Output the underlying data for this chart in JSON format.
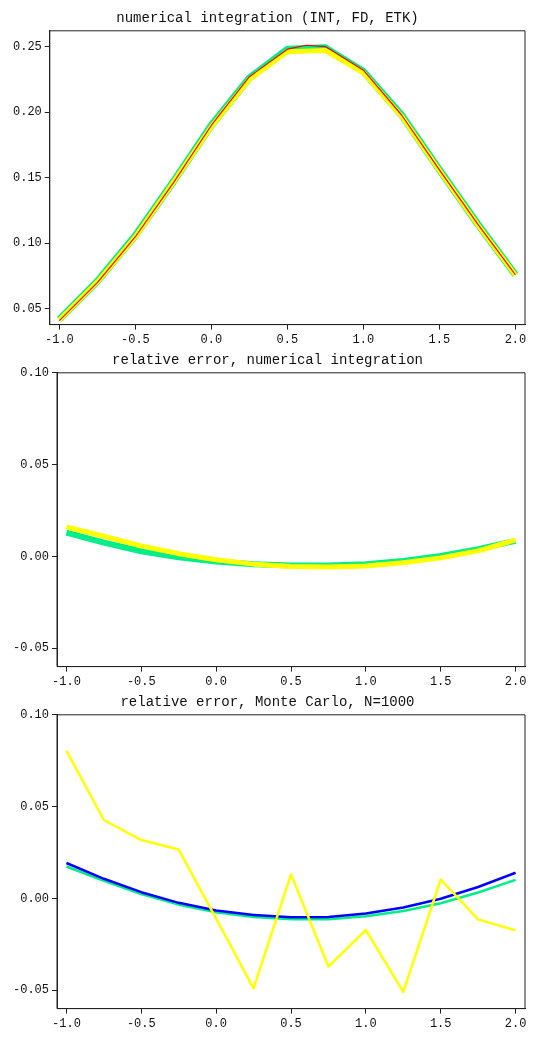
{
  "chart_data": [
    {
      "type": "line",
      "title": "numerical integration (INT, FD, ETK)",
      "x": [
        -1,
        -0.75,
        -0.5,
        -0.25,
        0,
        0.25,
        0.5,
        0.75,
        1,
        1.25,
        1.5,
        1.75,
        2
      ],
      "xlim": [
        -1.063,
        2.063
      ],
      "xticks": [
        {
          "value": -1,
          "label": "-1.0"
        },
        {
          "value": -0.5,
          "label": "-0.5"
        },
        {
          "value": 0,
          "label": "0.0"
        },
        {
          "value": 0.5,
          "label": "0.5"
        },
        {
          "value": 1,
          "label": "1.0"
        },
        {
          "value": 1.5,
          "label": "1.5"
        },
        {
          "value": 2,
          "label": "2.0"
        }
      ],
      "ylim": [
        0.038,
        0.262
      ],
      "yticks": [
        0.05,
        {
          "value": 0.1,
          "label": "0.10"
        },
        0.15,
        {
          "value": 0.2,
          "label": "0.20"
        },
        0.25
      ],
      "grid": false,
      "legend": false,
      "marker": "none",
      "series": [
        {
          "color": "#00ee88",
          "values": [
            0.042,
            0.071,
            0.106,
            0.147,
            0.19,
            0.226,
            0.248,
            0.249,
            0.231,
            0.198,
            0.156,
            0.115,
            0.076
          ]
        },
        {
          "color": "#ffff00",
          "values": [
            0.0415,
            0.0706,
            0.105,
            0.1465,
            0.189,
            0.225,
            0.246,
            0.247,
            0.23,
            0.197,
            0.1555,
            0.1144,
            0.0757
          ]
        },
        {
          "color": "#ff0000",
          "x": [
            -1,
            -0.75,
            -0.5,
            -0.25,
            0,
            0.25,
            0.5,
            0.625,
            0.75,
            1,
            1.25,
            1.5,
            1.75,
            2
          ],
          "values": [
            0.041,
            0.07,
            0.105,
            0.146,
            0.19,
            0.227,
            0.248,
            0.251,
            0.25,
            0.232,
            0.198,
            0.156,
            0.115,
            0.076
          ]
        }
      ]
    },
    {
      "type": "line",
      "title": "relative error, numerical integration",
      "x": [
        -1,
        -0.75,
        -0.5,
        -0.25,
        0,
        0.25,
        0.5,
        0.75,
        1,
        1.25,
        1.5,
        1.75,
        2
      ],
      "xlim": [
        -1.063,
        2.063
      ],
      "xticks": [
        {
          "value": -1,
          "label": "-1.0"
        },
        {
          "value": -0.5,
          "label": "-0.5"
        },
        {
          "value": 0,
          "label": "0.0"
        },
        {
          "value": 0.5,
          "label": "0.5"
        },
        {
          "value": 1,
          "label": "1.0"
        },
        {
          "value": 1.5,
          "label": "1.5"
        },
        {
          "value": 2,
          "label": "2.0"
        }
      ],
      "ylim": [
        -0.06,
        0.1
      ],
      "yticks": [
        {
          "value": -0.05,
          "label": "-0.05"
        },
        {
          "value": 0,
          "label": "0.00"
        },
        0.05,
        {
          "value": 0.1,
          "label": "0.10"
        }
      ],
      "grid": false,
      "legend": false,
      "marker": "none",
      "series": [
        {
          "color": "#00ee88",
          "values": [
            0.013,
            0.0075,
            0.0028,
            -0.0005,
            -0.0028,
            -0.0043,
            -0.005,
            -0.005,
            -0.0043,
            -0.0025,
            0.0003,
            0.004,
            0.0085
          ]
        },
        {
          "color": "#ffff00",
          "values": [
            0.016,
            0.011,
            0.0057,
            0.0015,
            -0.0018,
            -0.0042,
            -0.0055,
            -0.0058,
            -0.0052,
            -0.0035,
            -0.0008,
            0.003,
            0.009
          ]
        }
      ]
    },
    {
      "type": "line",
      "title": "relative error, Monte Carlo, N=1000",
      "x": [
        -1,
        -0.75,
        -0.5,
        -0.25,
        0,
        0.25,
        0.5,
        0.75,
        1,
        1.25,
        1.5,
        1.75,
        2
      ],
      "xlim": [
        -1.063,
        2.063
      ],
      "xticks": [
        {
          "value": -1,
          "label": "-1.0"
        },
        {
          "value": -0.5,
          "label": "-0.5"
        },
        {
          "value": 0,
          "label": "0.0"
        },
        {
          "value": 0.5,
          "label": "0.5"
        },
        {
          "value": 1,
          "label": "1.0"
        },
        {
          "value": 1.5,
          "label": "1.5"
        },
        {
          "value": 2,
          "label": "2.0"
        }
      ],
      "ylim": [
        -0.06,
        0.1
      ],
      "yticks": [
        {
          "value": -0.05,
          "label": "-0.05"
        },
        {
          "value": 0,
          "label": "0.00"
        },
        0.05,
        {
          "value": 0.1,
          "label": "0.10"
        }
      ],
      "grid": false,
      "legend": false,
      "marker": "none",
      "series": [
        {
          "color": "#00ee88",
          "values": [
            0.0174,
            0.0096,
            0.0024,
            -0.0034,
            -0.0075,
            -0.0101,
            -0.0114,
            -0.0114,
            -0.0097,
            -0.0069,
            -0.0026,
            0.0032,
            0.0101
          ]
        },
        {
          "color": "#0000ff",
          "values": [
            0.0193,
            0.0107,
            0.0034,
            -0.0024,
            -0.0066,
            -0.009,
            -0.0103,
            -0.0101,
            -0.0082,
            -0.0049,
            -0.0002,
            0.0062,
            0.014
          ]
        },
        {
          "color": "#ffff00",
          "values": [
            0.0805,
            0.0427,
            0.0318,
            0.0266,
            -0.011,
            -0.049,
            0.0131,
            -0.0371,
            -0.0172,
            -0.0509,
            0.0103,
            -0.0114,
            -0.0174
          ]
        }
      ]
    }
  ]
}
